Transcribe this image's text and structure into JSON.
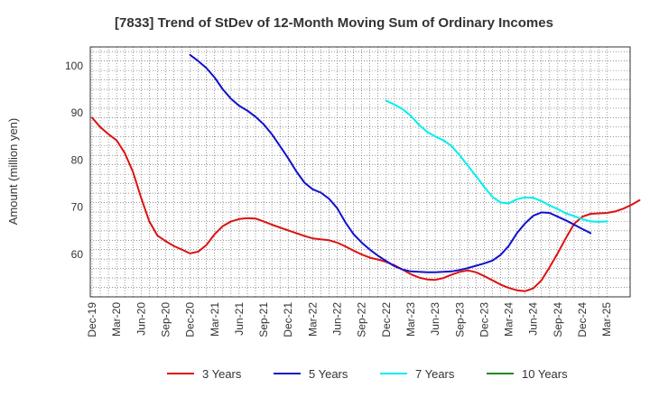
{
  "chart_data": {
    "type": "line",
    "title": "[7833]  Trend of StDev of 12-Month Moving Sum of Ordinary Incomes",
    "xlabel": "",
    "ylabel": "Amount (million yen)",
    "ylim": [
      51,
      104
    ],
    "yticks": [
      60,
      70,
      80,
      90,
      100
    ],
    "grid": true,
    "legend_position": "bottom",
    "x_tick_labels": [
      "Dec-19",
      "Mar-20",
      "Jun-20",
      "Sep-20",
      "Dec-20",
      "Mar-21",
      "Jun-21",
      "Sep-21",
      "Dec-21",
      "Mar-22",
      "Jun-22",
      "Sep-22",
      "Dec-22",
      "Mar-23",
      "Jun-23",
      "Sep-23",
      "Dec-23",
      "Mar-24",
      "Jun-24",
      "Sep-24",
      "Dec-24",
      "Mar-25"
    ],
    "series": [
      {
        "name": "3 Years",
        "color": "#dd1111",
        "start_month_index": 0,
        "values": [
          89,
          87,
          85.5,
          84.2,
          81.5,
          77.5,
          72,
          67,
          64,
          62.8,
          61.8,
          61,
          60.2,
          60.6,
          62,
          64.3,
          66,
          67,
          67.5,
          67.7,
          67.6,
          67,
          66.3,
          65.7,
          65.1,
          64.5,
          63.9,
          63.4,
          63.2,
          63,
          62.5,
          61.7,
          60.8,
          60,
          59.3,
          58.9,
          58.4,
          57.7,
          56.8,
          55.8,
          55.1,
          54.7,
          54.6,
          55,
          55.7,
          56.3,
          56.6,
          56.2,
          55.4,
          54.5,
          53.6,
          52.9,
          52.4,
          52.2,
          52.8,
          54.5,
          57.3,
          60.3,
          63.5,
          66.5,
          68,
          68.6,
          68.7,
          68.8,
          69.1,
          69.7,
          70.5,
          71.5
        ]
      },
      {
        "name": "5 Years",
        "color": "#1111cc",
        "start_month_index": 12,
        "values": [
          102.3,
          101,
          99.5,
          97.5,
          95,
          93,
          91.5,
          90.5,
          89.2,
          87.6,
          85.5,
          83,
          80.4,
          77.6,
          75.2,
          73.8,
          73.1,
          71.8,
          69.8,
          66.8,
          64.3,
          62.5,
          61,
          59.7,
          58.6,
          57.5,
          56.8,
          56.4,
          56.3,
          56.2,
          56.2,
          56.3,
          56.4,
          56.7,
          57.1,
          57.6,
          58.1,
          58.7,
          59.9,
          61.8,
          64.5,
          66.6,
          68.2,
          68.9,
          68.8,
          68,
          67.2,
          66.3,
          65.4,
          64.5
        ]
      },
      {
        "name": "7 Years",
        "color": "#00eeee",
        "start_month_index": 36,
        "values": [
          92.6,
          91.8,
          90.8,
          89.4,
          87.5,
          86,
          85,
          84.2,
          83,
          81,
          78.8,
          76.6,
          74.3,
          72.2,
          71,
          70.8,
          71.7,
          72.1,
          72,
          71.3,
          70.4,
          69.6,
          68.7,
          68.1,
          67.5,
          67,
          66.9,
          67
        ]
      },
      {
        "name": "10 Years",
        "color": "#228822",
        "start_month_index": 0,
        "values": []
      }
    ]
  }
}
